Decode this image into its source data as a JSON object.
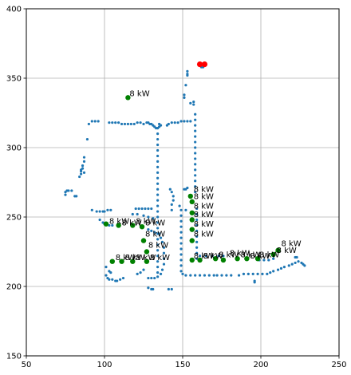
{
  "chart_data": {
    "type": "scatter",
    "title": "",
    "xlabel": "",
    "ylabel": "",
    "xlim": [
      50,
      250
    ],
    "ylim": [
      150,
      400
    ],
    "xticks": [
      50,
      100,
      150,
      200,
      250
    ],
    "yticks": [
      150,
      200,
      250,
      300,
      350,
      400
    ],
    "grid": true,
    "colors": {
      "network": "#1f77b4",
      "stations": "#008000",
      "depot": "#ff0000"
    },
    "series": [
      {
        "marker": "small-dot",
        "points": [
          [
            75,
            266
          ],
          [
            75,
            268
          ],
          [
            76,
            269
          ],
          [
            77,
            269
          ],
          [
            79,
            269
          ],
          [
            81,
            265
          ],
          [
            82,
            265
          ],
          [
            84,
            279
          ],
          [
            85,
            281
          ],
          [
            85,
            283
          ],
          [
            86,
            285
          ],
          [
            86,
            287
          ],
          [
            87,
            290
          ],
          [
            87,
            293
          ],
          [
            87,
            282
          ],
          [
            85,
            284
          ],
          [
            89,
            306
          ],
          [
            90,
            317
          ],
          [
            92,
            319
          ],
          [
            94,
            319
          ],
          [
            96,
            319
          ],
          [
            92,
            255
          ],
          [
            95,
            254
          ],
          [
            97,
            254
          ],
          [
            99,
            254
          ],
          [
            100,
            254
          ],
          [
            102,
            255
          ],
          [
            104,
            255
          ],
          [
            97,
            248
          ],
          [
            99,
            246
          ],
          [
            100,
            245
          ],
          [
            103,
            244
          ],
          [
            105,
            244
          ],
          [
            101,
            208
          ],
          [
            102,
            206
          ],
          [
            103,
            205
          ],
          [
            105,
            205
          ],
          [
            107,
            204
          ],
          [
            108,
            204
          ],
          [
            110,
            205
          ],
          [
            112,
            206
          ],
          [
            101,
            214
          ],
          [
            103,
            211
          ],
          [
            104,
            210
          ],
          [
            103,
            318
          ],
          [
            105,
            318
          ],
          [
            107,
            318
          ],
          [
            109,
            318
          ],
          [
            111,
            317
          ],
          [
            113,
            317
          ],
          [
            115,
            317
          ],
          [
            117,
            317
          ],
          [
            119,
            317
          ],
          [
            121,
            318
          ],
          [
            123,
            318
          ],
          [
            125,
            317
          ],
          [
            127,
            318
          ],
          [
            128,
            318
          ],
          [
            129,
            317
          ],
          [
            130,
            317
          ],
          [
            131,
            316
          ],
          [
            132,
            315
          ],
          [
            133,
            314
          ],
          [
            134,
            314
          ],
          [
            135,
            315
          ],
          [
            135,
            317
          ],
          [
            136,
            316
          ],
          [
            134,
            310
          ],
          [
            134,
            306
          ],
          [
            134,
            302
          ],
          [
            134,
            298
          ],
          [
            134,
            294
          ],
          [
            134,
            290
          ],
          [
            134,
            286
          ],
          [
            134,
            282
          ],
          [
            134,
            278
          ],
          [
            134,
            274
          ],
          [
            134,
            270
          ],
          [
            134,
            266
          ],
          [
            134,
            262
          ],
          [
            134,
            258
          ],
          [
            134,
            254
          ],
          [
            134,
            250
          ],
          [
            134,
            246
          ],
          [
            134,
            242
          ],
          [
            134,
            238
          ],
          [
            134,
            234
          ],
          [
            134,
            230
          ],
          [
            134,
            226
          ],
          [
            134,
            222
          ],
          [
            134,
            218
          ],
          [
            134,
            214
          ],
          [
            134,
            210
          ],
          [
            120,
            256
          ],
          [
            122,
            256
          ],
          [
            124,
            256
          ],
          [
            126,
            256
          ],
          [
            128,
            256
          ],
          [
            130,
            256
          ],
          [
            118,
            252
          ],
          [
            121,
            252
          ],
          [
            125,
            251
          ],
          [
            128,
            250
          ],
          [
            131,
            249
          ],
          [
            128,
            241
          ],
          [
            130,
            240
          ],
          [
            132,
            239
          ],
          [
            135,
            238
          ],
          [
            136,
            235
          ],
          [
            137,
            232
          ],
          [
            138,
            228
          ],
          [
            138,
            224
          ],
          [
            138,
            220
          ],
          [
            138,
            216
          ],
          [
            137,
            212
          ],
          [
            136,
            209
          ],
          [
            134,
            207
          ],
          [
            132,
            206
          ],
          [
            130,
            206
          ],
          [
            128,
            206
          ],
          [
            121,
            209
          ],
          [
            123,
            210
          ],
          [
            125,
            212
          ],
          [
            128,
            199
          ],
          [
            130,
            198
          ],
          [
            131,
            198
          ],
          [
            141,
            198
          ],
          [
            143,
            198
          ],
          [
            140,
            316
          ],
          [
            141,
            317
          ],
          [
            143,
            318
          ],
          [
            145,
            318
          ],
          [
            147,
            318
          ],
          [
            149,
            319
          ],
          [
            151,
            319
          ],
          [
            153,
            319
          ],
          [
            155,
            319
          ],
          [
            142,
            270
          ],
          [
            143,
            268
          ],
          [
            144,
            265
          ],
          [
            144,
            262
          ],
          [
            143,
            259
          ],
          [
            143,
            255
          ],
          [
            148,
            258
          ],
          [
            149,
            255
          ],
          [
            149,
            251
          ],
          [
            149,
            247
          ],
          [
            149,
            243
          ],
          [
            149,
            239
          ],
          [
            149,
            235
          ],
          [
            149,
            231
          ],
          [
            149,
            227
          ],
          [
            149,
            223
          ],
          [
            149,
            219
          ],
          [
            149,
            215
          ],
          [
            149,
            211
          ],
          [
            150,
            209
          ],
          [
            152,
            208
          ],
          [
            155,
            208
          ],
          [
            158,
            208
          ],
          [
            161,
            208
          ],
          [
            164,
            208
          ],
          [
            167,
            208
          ],
          [
            170,
            208
          ],
          [
            172,
            208
          ],
          [
            175,
            208
          ],
          [
            178,
            208
          ],
          [
            181,
            208
          ],
          [
            151,
            270
          ],
          [
            152,
            270
          ],
          [
            153,
            271
          ],
          [
            152,
            255
          ],
          [
            153,
            352
          ],
          [
            153,
            353
          ],
          [
            153,
            355
          ],
          [
            152,
            345
          ],
          [
            151,
            338
          ],
          [
            151,
            336
          ],
          [
            155,
            332
          ],
          [
            157,
            333
          ],
          [
            157,
            331
          ],
          [
            158,
            324
          ],
          [
            158,
            320
          ],
          [
            158,
            316
          ],
          [
            158,
            312
          ],
          [
            158,
            308
          ],
          [
            158,
            304
          ],
          [
            158,
            300
          ],
          [
            158,
            296
          ],
          [
            158,
            292
          ],
          [
            158,
            288
          ],
          [
            158,
            284
          ],
          [
            158,
            280
          ],
          [
            158,
            276
          ],
          [
            158,
            272
          ],
          [
            158,
            268
          ],
          [
            159,
            256
          ],
          [
            159,
            252
          ],
          [
            159,
            248
          ],
          [
            159,
            244
          ],
          [
            159,
            240
          ],
          [
            159,
            236
          ],
          [
            159,
            232
          ],
          [
            159,
            228
          ],
          [
            159,
            224
          ],
          [
            159,
            220
          ],
          [
            161,
            222
          ],
          [
            165,
            222
          ],
          [
            169,
            222
          ],
          [
            173,
            222
          ],
          [
            176,
            222
          ],
          [
            186,
            208
          ],
          [
            189,
            209
          ],
          [
            192,
            209
          ],
          [
            195,
            209
          ],
          [
            198,
            209
          ],
          [
            201,
            209
          ],
          [
            204,
            209
          ],
          [
            206,
            210
          ],
          [
            208,
            211
          ],
          [
            211,
            212
          ],
          [
            213,
            213
          ],
          [
            215,
            214
          ],
          [
            218,
            215
          ],
          [
            220,
            216
          ],
          [
            222,
            217
          ],
          [
            224,
            218
          ],
          [
            196,
            203
          ],
          [
            196,
            204
          ],
          [
            199,
            219
          ],
          [
            202,
            219
          ],
          [
            205,
            219
          ],
          [
            208,
            220
          ],
          [
            222,
            221
          ],
          [
            223,
            221
          ],
          [
            226,
            217
          ],
          [
            227,
            216
          ],
          [
            228,
            215
          ],
          [
            162,
            358
          ],
          [
            163,
            358
          ],
          [
            164,
            359
          ]
        ]
      },
      {
        "marker": "large-dot",
        "points": [
          [
            115,
            336
          ],
          [
            101,
            245
          ],
          [
            109,
            244
          ],
          [
            118,
            244
          ],
          [
            124,
            243
          ],
          [
            125,
            233
          ],
          [
            127,
            225
          ],
          [
            105,
            218
          ],
          [
            111,
            218
          ],
          [
            118,
            218
          ],
          [
            127,
            218
          ],
          [
            155,
            265
          ],
          [
            156,
            261
          ],
          [
            156,
            253
          ],
          [
            156,
            248
          ],
          [
            156,
            241
          ],
          [
            156,
            233
          ],
          [
            156,
            219
          ],
          [
            161,
            219
          ],
          [
            171,
            220
          ],
          [
            176,
            219
          ],
          [
            185,
            220
          ],
          [
            191,
            220
          ],
          [
            198,
            220
          ],
          [
            208,
            223
          ],
          [
            211,
            226
          ]
        ]
      },
      {
        "marker": "large-dot",
        "points": [
          [
            161,
            360
          ],
          [
            164,
            360
          ]
        ]
      }
    ],
    "annotations": [
      {
        "text": "8 kW",
        "x": 116,
        "y": 337
      },
      {
        "text": "8 kW",
        "x": 103,
        "y": 245
      },
      {
        "text": "8 kW",
        "x": 111,
        "y": 244
      },
      {
        "text": "8 kW",
        "x": 120,
        "y": 245
      },
      {
        "text": "8 kW",
        "x": 126,
        "y": 244
      },
      {
        "text": "8 kW",
        "x": 126,
        "y": 236
      },
      {
        "text": "8 kW",
        "x": 128,
        "y": 228
      },
      {
        "text": "8 kW",
        "x": 107,
        "y": 219
      },
      {
        "text": "8 kW",
        "x": 113,
        "y": 219
      },
      {
        "text": "8 kW",
        "x": 120,
        "y": 219
      },
      {
        "text": "8 kW",
        "x": 129,
        "y": 219
      },
      {
        "text": "8 kW",
        "x": 157,
        "y": 268
      },
      {
        "text": "8 kW",
        "x": 157,
        "y": 263
      },
      {
        "text": "8 kW",
        "x": 157,
        "y": 256
      },
      {
        "text": "8 kW",
        "x": 157,
        "y": 250
      },
      {
        "text": "8 kW",
        "x": 157,
        "y": 243
      },
      {
        "text": "8 kW",
        "x": 157,
        "y": 236
      },
      {
        "text": "8 kW",
        "x": 157,
        "y": 220
      },
      {
        "text": "8 kW",
        "x": 163,
        "y": 220
      },
      {
        "text": "8 kW",
        "x": 173,
        "y": 221
      },
      {
        "text": "8 kW",
        "x": 180,
        "y": 222
      },
      {
        "text": "8 kW",
        "x": 187,
        "y": 221
      },
      {
        "text": "8 kW",
        "x": 193,
        "y": 220
      },
      {
        "text": "8 kW",
        "x": 199,
        "y": 221
      },
      {
        "text": "8 kW",
        "x": 210,
        "y": 224
      },
      {
        "text": "8 kW",
        "x": 213,
        "y": 229
      }
    ]
  }
}
